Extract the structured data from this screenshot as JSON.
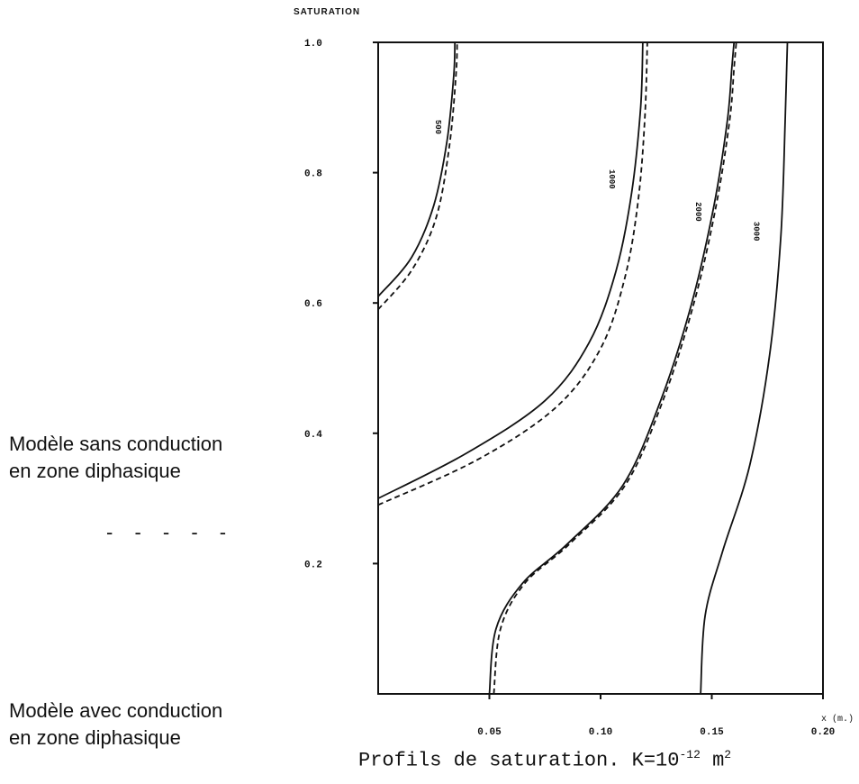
{
  "chart_data": {
    "type": "line",
    "ylabel": "SATURATION",
    "xlabel": "x (m.)",
    "xlim": [
      0,
      0.2
    ],
    "ylim": [
      0,
      1.0
    ],
    "x_ticks": [
      {
        "value": 0.05,
        "label": "0.05"
      },
      {
        "value": 0.1,
        "label": "0.10"
      },
      {
        "value": 0.15,
        "label": "0.15"
      },
      {
        "value": 0.2,
        "label": "0.20"
      }
    ],
    "y_ticks": [
      {
        "value": 0.2,
        "label": "0.2"
      },
      {
        "value": 0.4,
        "label": "0.4"
      },
      {
        "value": 0.6,
        "label": "0.6"
      },
      {
        "value": 0.8,
        "label": "0.8"
      },
      {
        "value": 1.0,
        "label": "1.0"
      }
    ],
    "series": [
      {
        "name": "500",
        "style": "solid",
        "x": [
          0.0,
          0.015,
          0.025,
          0.031,
          0.034,
          0.0345
        ],
        "y": [
          0.61,
          0.67,
          0.75,
          0.85,
          0.95,
          1.0
        ]
      },
      {
        "name": "500",
        "style": "dashed",
        "x": [
          0.0,
          0.015,
          0.026,
          0.032,
          0.035,
          0.0355
        ],
        "y": [
          0.59,
          0.65,
          0.73,
          0.84,
          0.95,
          1.0
        ]
      },
      {
        "name": "1000",
        "style": "solid",
        "x": [
          0.0,
          0.04,
          0.075,
          0.095,
          0.107,
          0.114,
          0.118,
          0.119
        ],
        "y": [
          0.3,
          0.37,
          0.45,
          0.54,
          0.65,
          0.77,
          0.9,
          1.0
        ]
      },
      {
        "name": "1000",
        "style": "dashed",
        "x": [
          0.0,
          0.045,
          0.08,
          0.1,
          0.111,
          0.117,
          0.12,
          0.121
        ],
        "y": [
          0.29,
          0.36,
          0.44,
          0.53,
          0.64,
          0.76,
          0.89,
          1.0
        ]
      },
      {
        "name": "2000",
        "style": "solid",
        "x": [
          0.05,
          0.053,
          0.065,
          0.085,
          0.11,
          0.127,
          0.141,
          0.151,
          0.157,
          0.159,
          0.16
        ],
        "y": [
          0.0,
          0.1,
          0.17,
          0.23,
          0.32,
          0.45,
          0.6,
          0.75,
          0.88,
          0.96,
          1.0
        ]
      },
      {
        "name": "2000",
        "style": "dashed",
        "x": [
          0.052,
          0.055,
          0.066,
          0.086,
          0.111,
          0.128,
          0.142,
          0.152,
          0.158,
          0.16,
          0.161
        ],
        "y": [
          0.0,
          0.1,
          0.17,
          0.23,
          0.32,
          0.45,
          0.6,
          0.75,
          0.88,
          0.96,
          1.0
        ]
      },
      {
        "name": "3000",
        "style": "solid",
        "x": [
          0.145,
          0.147,
          0.155,
          0.167,
          0.176,
          0.181,
          0.183,
          0.184
        ],
        "y": [
          0.0,
          0.12,
          0.22,
          0.35,
          0.52,
          0.7,
          0.88,
          1.0
        ]
      }
    ],
    "curve_labels": [
      {
        "text": "500",
        "x": 0.026,
        "y": 0.87
      },
      {
        "text": "1000",
        "x": 0.104,
        "y": 0.79
      },
      {
        "text": "2000",
        "x": 0.143,
        "y": 0.74
      },
      {
        "text": "3000",
        "x": 0.169,
        "y": 0.71
      }
    ]
  },
  "legend": {
    "solid_line1": "Modèle sans conduction",
    "solid_line2": "en zone diphasique",
    "dashes": "- - - - -",
    "dashed_line1": "Modèle avec conduction",
    "dashed_line2": "en zone diphasique"
  },
  "caption": {
    "prefix": "Profils de saturation. K=10",
    "exponent": "-12",
    "unit": "m",
    "unit_exponent": "2"
  }
}
